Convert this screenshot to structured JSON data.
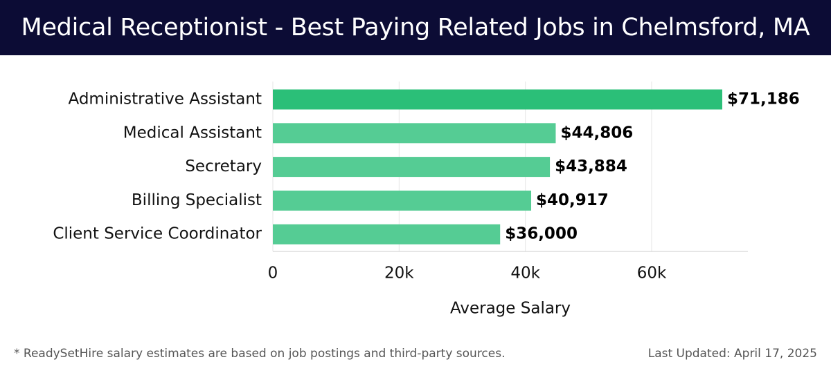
{
  "header": {
    "title": "Medical Receptionist - Best Paying Related Jobs in Chelmsford, MA"
  },
  "chart_data": {
    "type": "bar",
    "orientation": "horizontal",
    "title": "Medical Receptionist - Best Paying Related Jobs in Chelmsford, MA",
    "categories": [
      "Administrative Assistant",
      "Medical Assistant",
      "Secretary",
      "Billing Specialist",
      "Client Service Coordinator"
    ],
    "values": [
      71186,
      44806,
      43884,
      40917,
      36000
    ],
    "value_labels": [
      "$71,186",
      "$44,806",
      "$43,884",
      "$40,917",
      "$36,000"
    ],
    "xlabel": "Average Salary",
    "ylabel": "",
    "xlim": [
      0,
      75000
    ],
    "xticks": [
      0,
      20000,
      40000,
      60000
    ],
    "xtick_labels": [
      "0",
      "20k",
      "40k",
      "60k"
    ],
    "grid": true,
    "colors": {
      "highlight": "#2bbf78",
      "bar": "#55cc94",
      "grid": "#e6e6e6",
      "axis": "#cccccc"
    }
  },
  "footer": {
    "note": "* ReadySetHire salary estimates are based on job postings and third-party sources.",
    "updated": "Last Updated: April 17, 2025"
  }
}
